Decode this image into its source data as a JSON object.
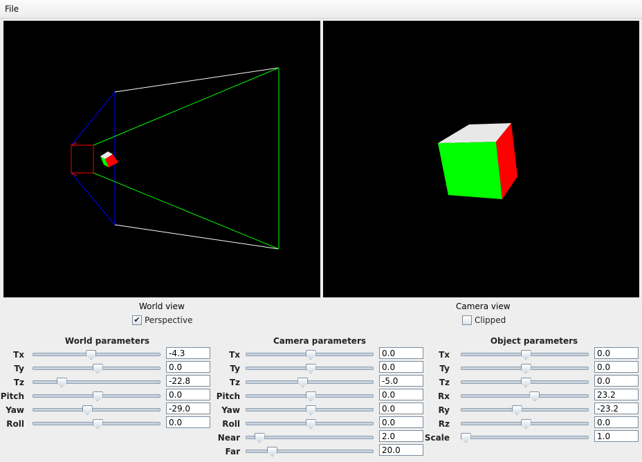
{
  "menu": {
    "file_label": "File"
  },
  "world_view": {
    "label": "World view",
    "perspective_label": "Perspective",
    "perspective_checked": true
  },
  "camera_view": {
    "label": "Camera view",
    "clipped_label": "Clipped",
    "clipped_checked": false
  },
  "colors": {
    "cube_top": "#e8e8e8",
    "cube_front": "#00ff00",
    "cube_side": "#ff0000",
    "frustum_near": "#ff0000",
    "frustum_far": "#00ff00",
    "frustum_edge": "#ffffff",
    "frustum_blue": "#0000ff"
  },
  "panels": [
    {
      "title": "World parameters",
      "params": [
        {
          "label": "Tx",
          "value": "-4.3",
          "level": 0.45
        },
        {
          "label": "Ty",
          "value": "0.0",
          "level": 0.5
        },
        {
          "label": "Tz",
          "value": "-22.8",
          "level": 0.22
        },
        {
          "label": "Pitch",
          "value": "0.0",
          "level": 0.5
        },
        {
          "label": "Yaw",
          "value": "-29.0",
          "level": 0.42
        },
        {
          "label": "Roll",
          "value": "0.0",
          "level": 0.5
        }
      ]
    },
    {
      "title": "Camera parameters",
      "params": [
        {
          "label": "Tx",
          "value": "0.0",
          "level": 0.5
        },
        {
          "label": "Ty",
          "value": "0.0",
          "level": 0.5
        },
        {
          "label": "Tz",
          "value": "-5.0",
          "level": 0.44
        },
        {
          "label": "Pitch",
          "value": "0.0",
          "level": 0.5
        },
        {
          "label": "Yaw",
          "value": "0.0",
          "level": 0.5
        },
        {
          "label": "Roll",
          "value": "0.0",
          "level": 0.5
        },
        {
          "label": "Near",
          "value": "2.0",
          "level": 0.1
        },
        {
          "label": "Far",
          "value": "20.0",
          "level": 0.2
        }
      ]
    },
    {
      "title": "Object parameters",
      "params": [
        {
          "label": "Tx",
          "value": "0.0",
          "level": 0.5
        },
        {
          "label": "Ty",
          "value": "0.0",
          "level": 0.5
        },
        {
          "label": "Tz",
          "value": "0.0",
          "level": 0.5
        },
        {
          "label": "Rx",
          "value": "23.2",
          "level": 0.57
        },
        {
          "label": "Ry",
          "value": "-23.2",
          "level": 0.43
        },
        {
          "label": "Rz",
          "value": "0.0",
          "level": 0.5
        },
        {
          "label": "Scale",
          "value": "1.0",
          "level": 0.03
        }
      ]
    }
  ]
}
